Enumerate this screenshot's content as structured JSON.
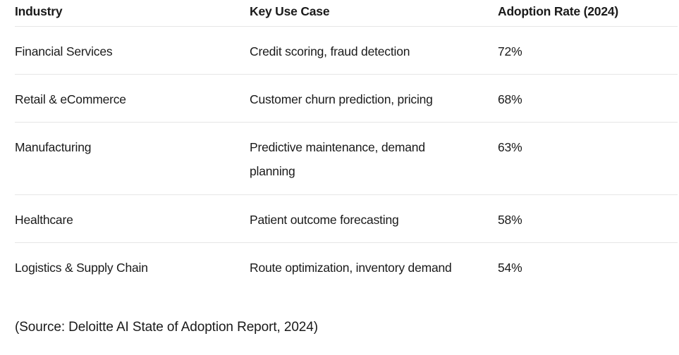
{
  "table": {
    "headers": [
      "Industry",
      "Key Use Case",
      "Adoption Rate (2024)"
    ],
    "rows": [
      [
        "Financial Services",
        "Credit scoring, fraud detection",
        "72%"
      ],
      [
        "Retail & eCommerce",
        "Customer churn prediction, pricing",
        "68%"
      ],
      [
        "Manufacturing",
        "Predictive maintenance, demand planning",
        "63%"
      ],
      [
        "Healthcare",
        "Patient outcome forecasting",
        "58%"
      ],
      [
        "Logistics & Supply Chain",
        "Route optimization, inventory demand",
        "54%"
      ]
    ]
  },
  "source_note": "(Source: Deloitte AI State of Adoption Report, 2024)"
}
